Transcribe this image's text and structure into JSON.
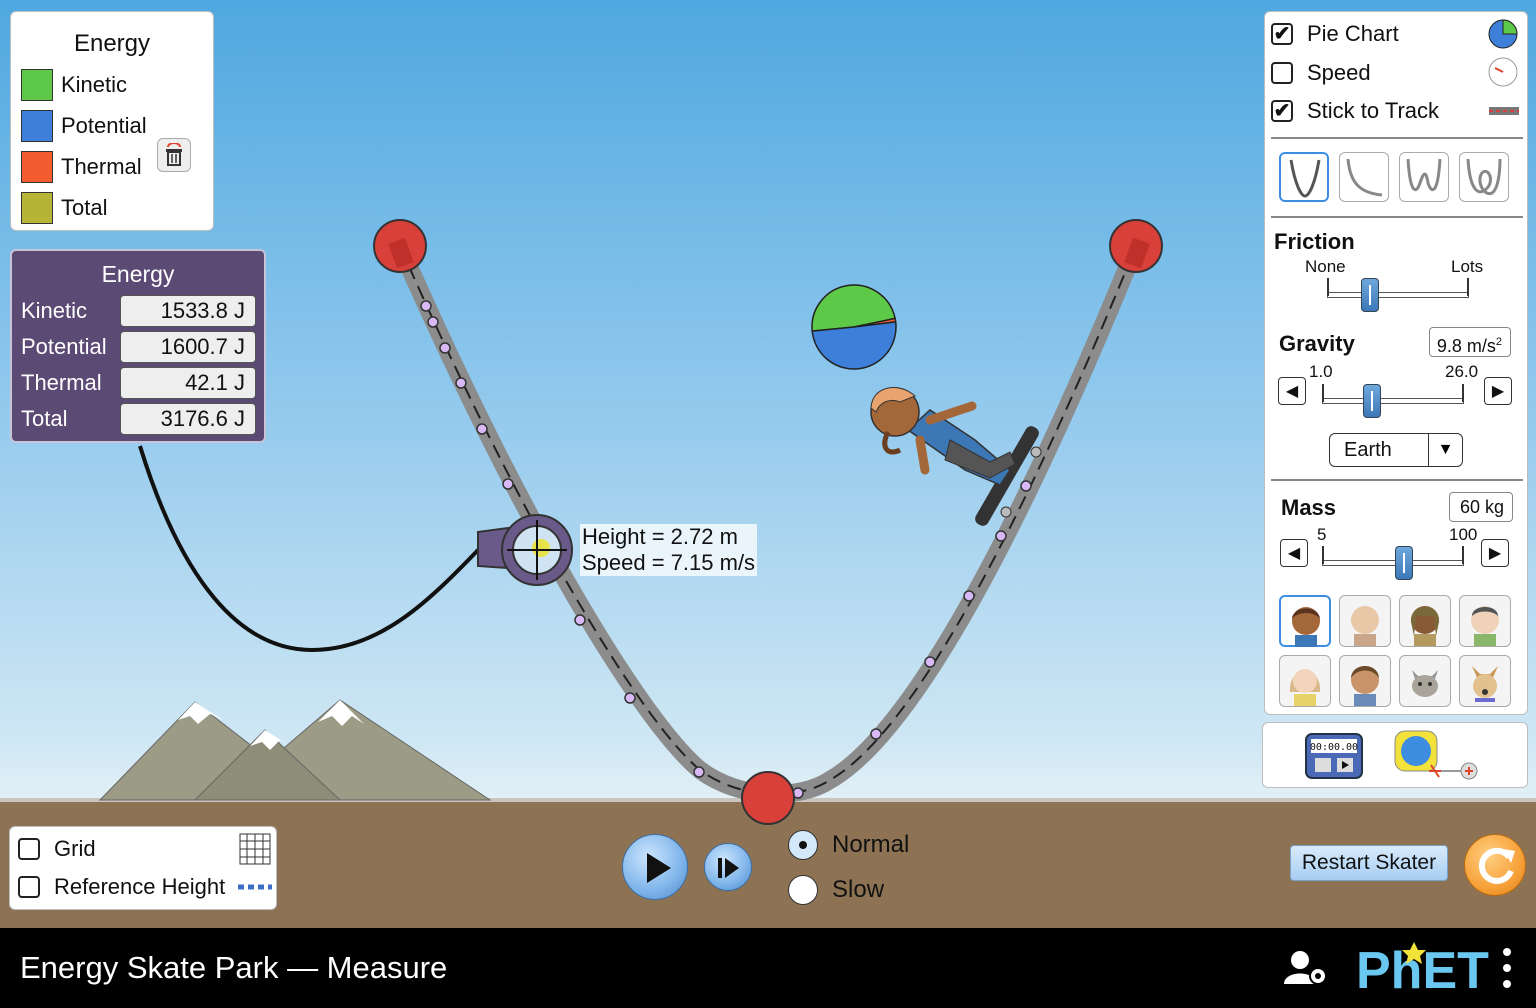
{
  "legend": {
    "title": "Energy",
    "items": [
      {
        "label": "Kinetic",
        "color": "#5ec948"
      },
      {
        "label": "Potential",
        "color": "#3d7fd9"
      },
      {
        "label": "Thermal",
        "color": "#f25c2e"
      },
      {
        "label": "Total",
        "color": "#b5b437"
      }
    ],
    "clear_thermal_icon": "trash-icon"
  },
  "energy_values": {
    "title": "Energy",
    "rows": [
      {
        "label": "Kinetic",
        "value": "1533.8 J"
      },
      {
        "label": "Potential",
        "value": "1600.7 J"
      },
      {
        "label": "Thermal",
        "value": "42.1 J"
      },
      {
        "label": "Total",
        "value": "3176.6 J"
      }
    ]
  },
  "probe": {
    "height_text": "Height = 2.72 m",
    "speed_text": "Speed = 7.15 m/s"
  },
  "pie_chart": {
    "kinetic": 1533.8,
    "potential": 1600.7,
    "thermal": 42.1
  },
  "controls": {
    "checkboxes": [
      {
        "label": "Pie Chart",
        "checked": true,
        "icon": "pie-chart-icon"
      },
      {
        "label": "Speed",
        "checked": false,
        "icon": "speedometer-icon"
      },
      {
        "label": "Stick to Track",
        "checked": true,
        "icon": "track-icon"
      }
    ],
    "track_shapes": [
      "u-track-icon",
      "ramp-track-icon",
      "w-track-icon",
      "loop-track-icon"
    ],
    "friction": {
      "title": "Friction",
      "min_label": "None",
      "max_label": "Lots",
      "value": 0.3
    },
    "gravity": {
      "title": "Gravity",
      "readout": "9.8 m/s",
      "unit_sup": "2",
      "min_label": "1.0",
      "max_label": "26.0",
      "value": 9.8,
      "min": 1.0,
      "max": 26.0
    },
    "planet": {
      "selected": "Earth"
    },
    "mass": {
      "title": "Mass",
      "readout": "60 kg",
      "min_label": "5",
      "max_label": "100",
      "value": 60,
      "min": 5,
      "max": 100
    },
    "characters": [
      "skater-girl-avatar",
      "skater-bald-avatar",
      "skater-braids-avatar",
      "skater-man-avatar",
      "skater-blonde-avatar",
      "skater-boy-avatar",
      "cat-avatar",
      "dog-avatar"
    ]
  },
  "tools": {
    "stopwatch": {
      "display": "00:00.00",
      "icon": "stopwatch-icon"
    },
    "tape": {
      "icon": "measuring-tape-icon"
    }
  },
  "grid_panel": {
    "grid": {
      "label": "Grid",
      "checked": false,
      "icon": "grid-icon"
    },
    "reference": {
      "label": "Reference Height",
      "checked": false,
      "icon": "reference-line-icon"
    }
  },
  "playback": {
    "play_icon": "play-icon",
    "step_icon": "step-forward-icon",
    "speeds": [
      {
        "label": "Normal",
        "selected": true
      },
      {
        "label": "Slow",
        "selected": false
      }
    ]
  },
  "restart_label": "Restart Skater",
  "reset_icon": "reset-all-icon",
  "footer": {
    "title": "Energy Skate Park — Measure",
    "brand": "PhET",
    "account_icon": "user-settings-icon",
    "menu_icon": "kebab-menu-icon"
  }
}
